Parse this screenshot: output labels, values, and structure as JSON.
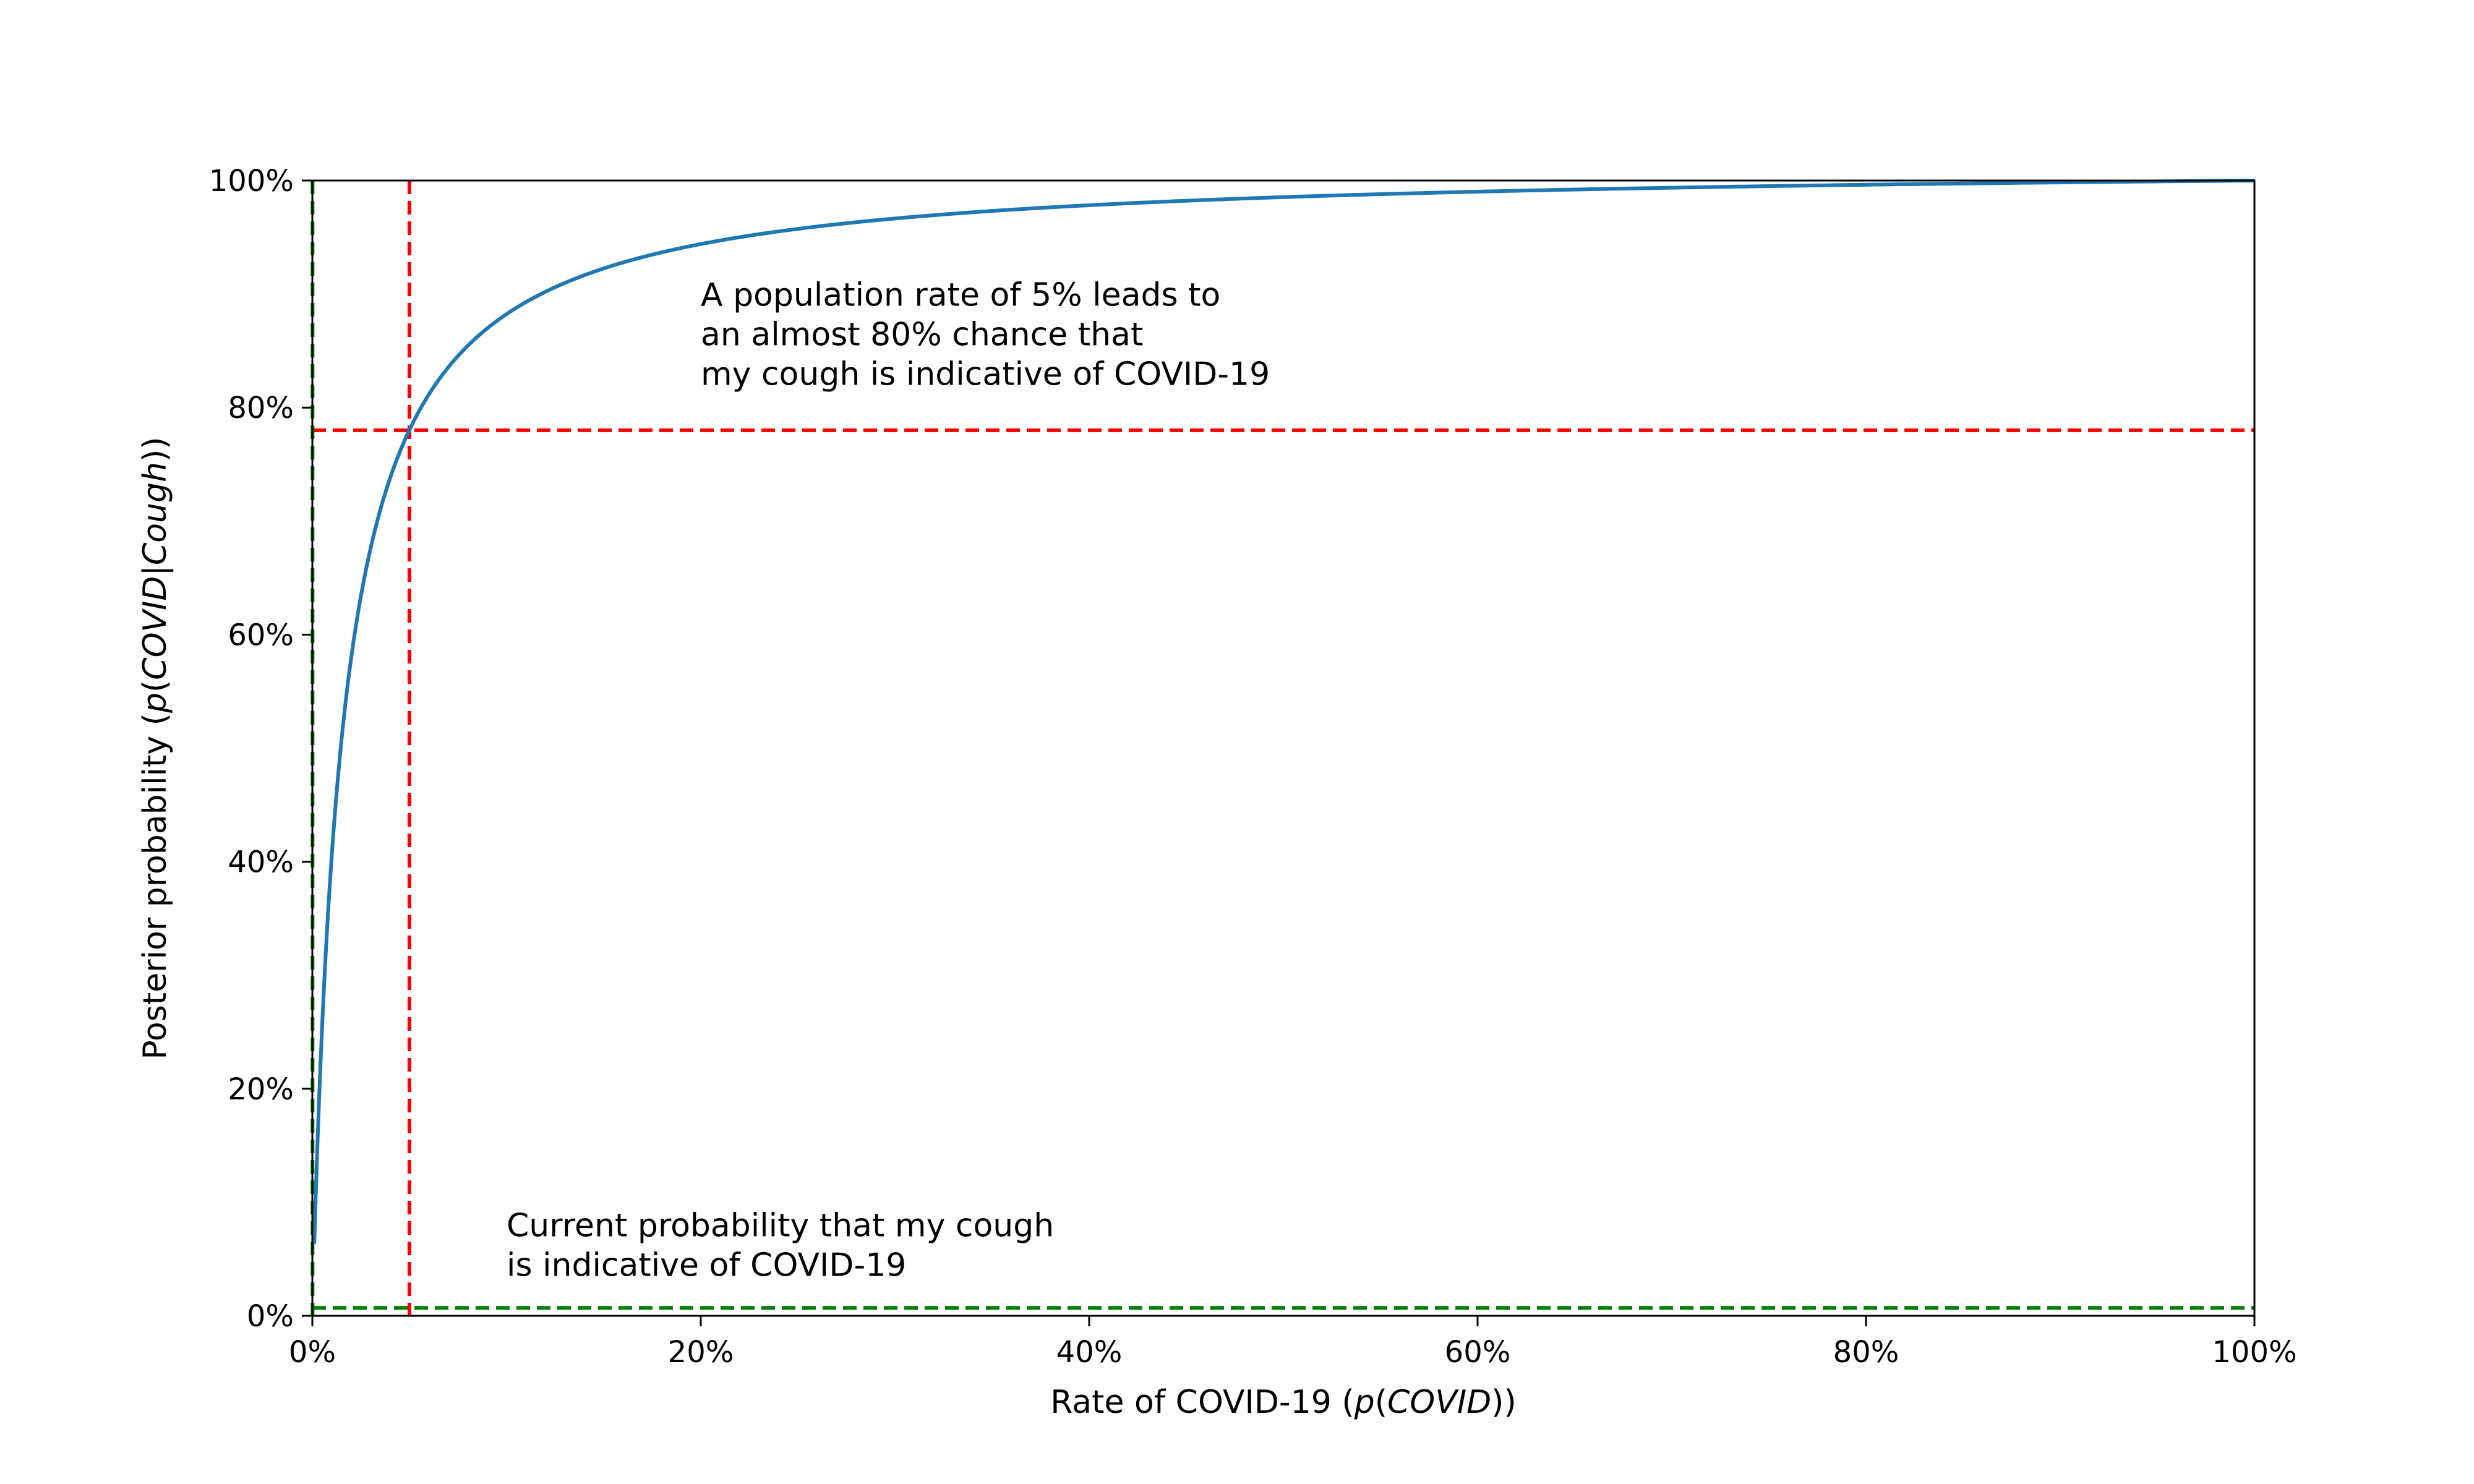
{
  "chart_data": {
    "type": "line",
    "xlabel_parts": [
      "Rate of COVID-19 (",
      "p",
      "(",
      "COVID",
      "))"
    ],
    "ylabel_parts": [
      "Posterior probability (",
      "p",
      "(",
      "COVID",
      "|",
      "Cough",
      "))"
    ],
    "xlim": [
      0,
      1
    ],
    "ylim": [
      0,
      1
    ],
    "x_ticks": [
      0,
      0.2,
      0.4,
      0.6,
      0.8,
      1.0
    ],
    "x_tick_labels": [
      "0%",
      "20%",
      "40%",
      "60%",
      "80%",
      "100%"
    ],
    "y_ticks": [
      0,
      0.2,
      0.4,
      0.6,
      0.8,
      1.0
    ],
    "y_tick_labels": [
      "0%",
      "20%",
      "40%",
      "60%",
      "80%",
      "100%"
    ],
    "grid": false,
    "series": [
      {
        "color": "#1f77b4",
        "likelihood_ratio": 67.5,
        "x_start": 0.001,
        "x_end": 1.0
      }
    ],
    "reference_lines": [
      {
        "orientation": "vertical",
        "value": 0.05,
        "color": "#ff0000",
        "style": "dashed"
      },
      {
        "orientation": "horizontal",
        "value": 0.78,
        "color": "#ff0000",
        "style": "dashed"
      },
      {
        "orientation": "vertical",
        "value": 0.0001,
        "color": "#008000",
        "style": "dashed"
      },
      {
        "orientation": "horizontal",
        "value": 0.007,
        "color": "#008000",
        "style": "dashed"
      }
    ],
    "annotations": [
      {
        "x": 0.2,
        "y": 0.82,
        "lines": [
          "A population rate of 5% leads to",
          "an almost 80% chance that",
          "my cough is indicative of COVID-19"
        ]
      },
      {
        "x": 0.1,
        "y": 0.035,
        "lines": [
          "Current probability that my cough",
          "is indicative of COVID-19"
        ]
      }
    ]
  }
}
